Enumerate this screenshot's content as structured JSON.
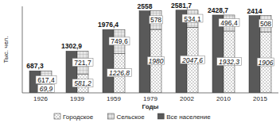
{
  "chart_data": {
    "type": "bar",
    "x_label": "Годы",
    "y_label": "Тыс. чел.",
    "categories": [
      "1926",
      "1939",
      "1959",
      "1979",
      "2002",
      "2010",
      "2015"
    ],
    "series": [
      {
        "name": "Городское",
        "color": "#ffffff",
        "stacked": true,
        "values": [
          69.9,
          581.2,
          1226.8,
          1980,
          2047.6,
          1932.3,
          1906
        ],
        "value_labels": [
          "69,9",
          "581,2",
          "1226,8",
          "1980",
          "2047,6",
          "1932,3",
          "1906"
        ]
      },
      {
        "name": "Сельское",
        "color": "#e6e6e6",
        "stacked": true,
        "values": [
          617.4,
          721.7,
          749.6,
          578,
          534.1,
          496.4,
          508
        ],
        "value_labels": [
          "617,4",
          "721,7",
          "749,6",
          "578",
          "534,1",
          "496,4",
          "508"
        ]
      },
      {
        "name": "Все население",
        "color": "#595959",
        "stacked": false,
        "values": [
          687.3,
          1302.9,
          1976.4,
          2558,
          2581.7,
          2428.7,
          2414
        ],
        "value_labels": [
          "687,3",
          "1302,9",
          "1976,4",
          "2558",
          "2581,7",
          "2428,7",
          "2414"
        ]
      }
    ],
    "ylim": [
      0,
      2700
    ],
    "data_labels": true,
    "tick_labels": "x",
    "grid": false,
    "legend": "bottom"
  }
}
